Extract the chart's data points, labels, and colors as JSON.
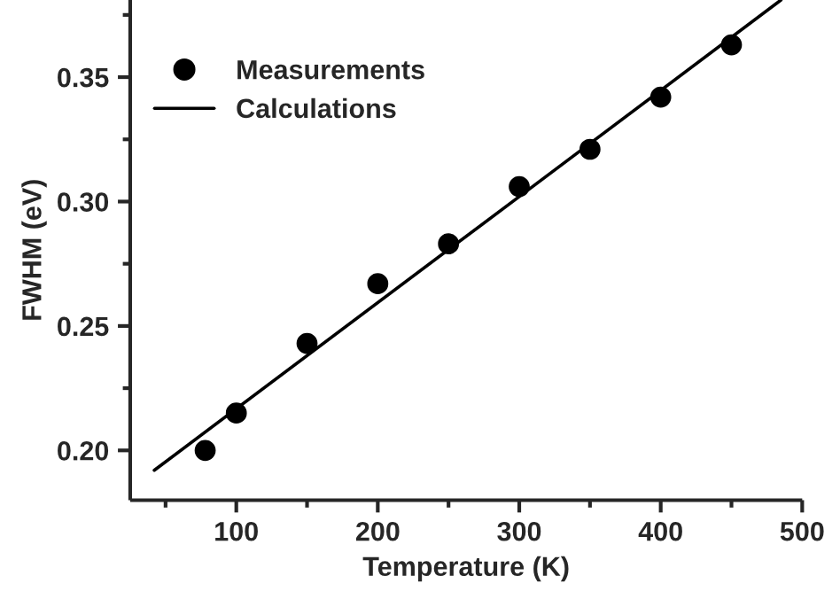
{
  "chart_data": {
    "type": "scatter",
    "xlabel": "Temperature (K)",
    "ylabel": "FWHM (eV)",
    "xlim": [
      25,
      500
    ],
    "ylim": [
      0.18,
      0.381
    ],
    "xticks": [
      100,
      200,
      300,
      400,
      500
    ],
    "yticks": [
      {
        "value": 0.2,
        "label": "0.20"
      },
      {
        "value": 0.25,
        "label": "0.25"
      },
      {
        "value": 0.3,
        "label": "0.30"
      },
      {
        "value": 0.35,
        "label": "0.35"
      }
    ],
    "legend": "top left",
    "grid": false,
    "marker": "circle",
    "series": [
      {
        "name": "Measurements",
        "type": "scatter",
        "color": "#000000",
        "x": [
          78,
          100,
          150,
          200,
          250,
          300,
          350,
          400,
          450
        ],
        "values": [
          0.2,
          0.215,
          0.243,
          0.267,
          0.283,
          0.306,
          0.321,
          0.342,
          0.363
        ]
      },
      {
        "name": "Calculations",
        "type": "line",
        "color": "#000000",
        "line_style": "solid",
        "marker": "none",
        "x": [
          42,
          300,
          485
        ],
        "values": [
          0.192,
          0.302,
          0.381
        ]
      }
    ]
  }
}
